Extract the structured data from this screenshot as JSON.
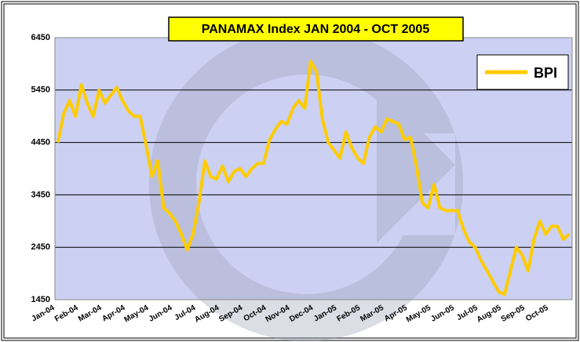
{
  "chart_data": {
    "type": "line",
    "title": "PANAMAX Index JAN 2004 - OCT 2005",
    "categories": [
      "Jan-04",
      null,
      null,
      null,
      "Feb-04",
      null,
      null,
      null,
      "Mar-04",
      null,
      null,
      null,
      "Apr-04",
      null,
      null,
      null,
      "May-04",
      null,
      null,
      null,
      "Jun-04",
      null,
      null,
      null,
      "Jul-04",
      null,
      null,
      null,
      "Aug-04",
      null,
      null,
      null,
      "Sep-04",
      null,
      null,
      null,
      "Oct-04",
      null,
      null,
      null,
      "Nov-04",
      null,
      null,
      null,
      "Dec-04",
      null,
      null,
      null,
      "Jan-05",
      null,
      null,
      null,
      "Feb-05",
      null,
      null,
      null,
      "Mar-05",
      null,
      null,
      null,
      "Apr-05",
      null,
      null,
      null,
      "May-05",
      null,
      null,
      null,
      "Jun-05",
      null,
      null,
      null,
      "Jul-05",
      null,
      null,
      null,
      "Aug-05",
      null,
      null,
      null,
      "Sep-05",
      null,
      null,
      null,
      "Oct-05",
      null,
      null,
      null
    ],
    "series": [
      {
        "name": "BPI",
        "color": "#ffcc00",
        "values": [
          4450,
          5000,
          5250,
          4950,
          5550,
          5200,
          4950,
          5450,
          5200,
          5350,
          5500,
          5250,
          5050,
          4950,
          4950,
          4400,
          3800,
          4100,
          3200,
          3100,
          2950,
          2700,
          2400,
          2700,
          3300,
          4100,
          3800,
          3750,
          4000,
          3700,
          3900,
          3950,
          3800,
          3950,
          4050,
          4050,
          4500,
          4700,
          4850,
          4800,
          5100,
          5250,
          5100,
          6000,
          5800,
          4900,
          4450,
          4300,
          4150,
          4650,
          4350,
          4150,
          4050,
          4550,
          4750,
          4650,
          4900,
          4850,
          4800,
          4500,
          4550,
          4000,
          3300,
          3200,
          3650,
          3200,
          3150,
          3150,
          3150,
          2800,
          2550,
          2450,
          2200,
          2000,
          1800,
          1600,
          1550,
          2000,
          2450,
          2300,
          2000,
          2600,
          2950,
          2700,
          2850,
          2850,
          2600,
          2700
        ]
      }
    ],
    "ylim": [
      1450,
      6450
    ],
    "yticks": [
      1450,
      2450,
      3450,
      4450,
      5450,
      6450
    ],
    "grid": true,
    "legend": "upper right"
  }
}
